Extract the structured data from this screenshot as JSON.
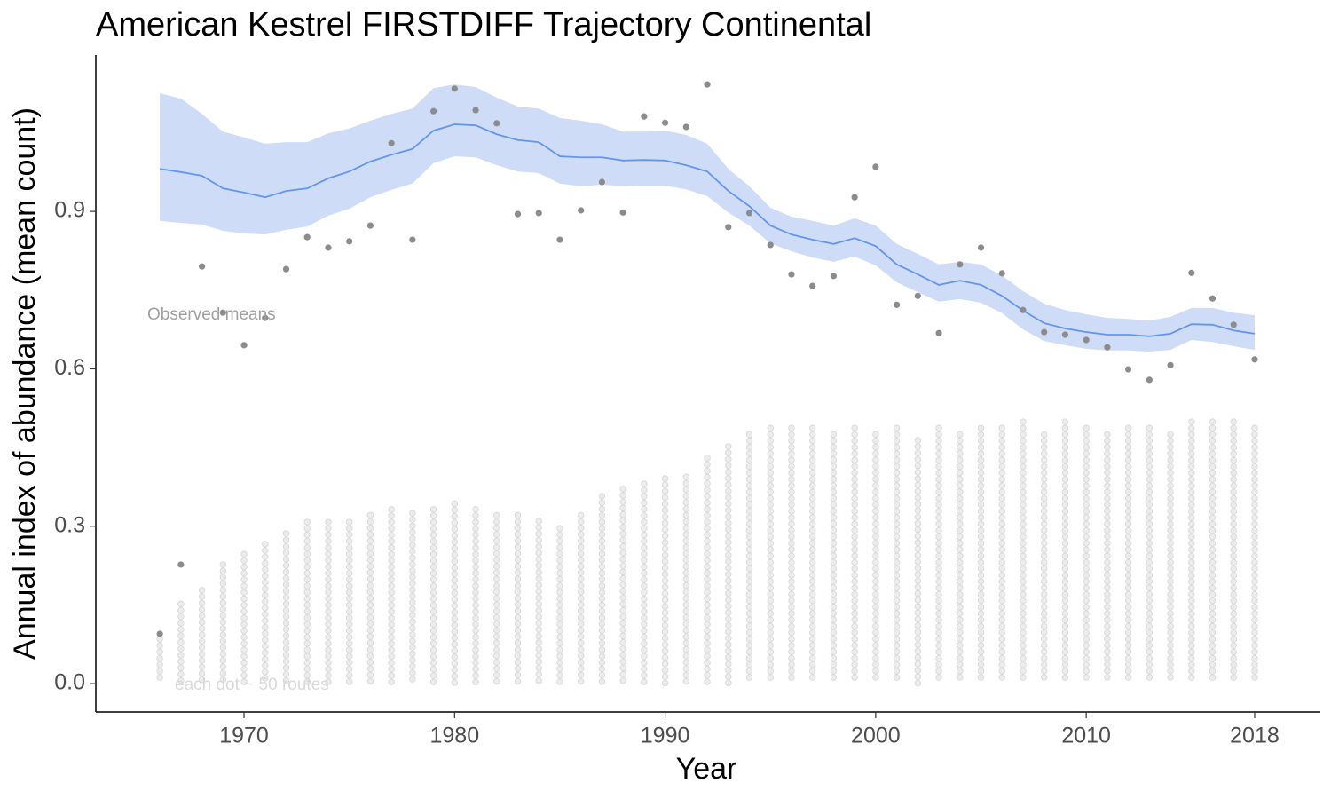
{
  "chart_data": {
    "type": "line",
    "title": "American Kestrel FIRSTDIFF Trajectory Continental",
    "xlabel": "Year",
    "ylabel": "Annual index of abundance (mean count)",
    "annotations": [
      "Observed means",
      "each dot ~ 50 routes"
    ],
    "x": [
      1966,
      1967,
      1968,
      1969,
      1970,
      1971,
      1972,
      1973,
      1974,
      1975,
      1976,
      1977,
      1978,
      1979,
      1980,
      1981,
      1982,
      1983,
      1984,
      1985,
      1986,
      1987,
      1988,
      1989,
      1990,
      1991,
      1992,
      1993,
      1994,
      1995,
      1996,
      1997,
      1998,
      1999,
      2000,
      2001,
      2002,
      2003,
      2004,
      2005,
      2006,
      2007,
      2008,
      2009,
      2010,
      2011,
      2012,
      2013,
      2014,
      2015,
      2016,
      2017,
      2018
    ],
    "observed_means": {
      "color": "#8c8c8c",
      "values": [
        0.095,
        0.227,
        0.795,
        0.707,
        0.645,
        0.697,
        0.79,
        0.851,
        0.831,
        0.843,
        0.873,
        1.03,
        0.846,
        1.091,
        1.134,
        1.093,
        1.068,
        0.895,
        0.897,
        0.846,
        0.902,
        0.956,
        0.898,
        1.081,
        1.069,
        1.061,
        1.142,
        0.87,
        0.897,
        0.836,
        0.78,
        0.758,
        0.777,
        0.927,
        0.985,
        0.722,
        0.739,
        0.668,
        0.799,
        0.831,
        0.782,
        0.712,
        0.67,
        0.665,
        0.655,
        0.641,
        0.599,
        0.579,
        0.607,
        0.783,
        0.734,
        0.684,
        0.618
      ]
    },
    "trajectory": {
      "color": "#6495ed",
      "values": [
        0.981,
        0.975,
        0.968,
        0.944,
        0.936,
        0.927,
        0.939,
        0.944,
        0.963,
        0.976,
        0.995,
        1.008,
        1.019,
        1.054,
        1.066,
        1.064,
        1.047,
        1.036,
        1.032,
        1.005,
        1.003,
        1.003,
        0.997,
        0.998,
        0.997,
        0.988,
        0.976,
        0.939,
        0.91,
        0.873,
        0.856,
        0.846,
        0.838,
        0.849,
        0.834,
        0.799,
        0.78,
        0.76,
        0.768,
        0.76,
        0.739,
        0.711,
        0.687,
        0.677,
        0.67,
        0.665,
        0.665,
        0.662,
        0.667,
        0.685,
        0.684,
        0.673,
        0.667
      ]
    },
    "ci_upper": [
      1.125,
      1.115,
      1.086,
      1.052,
      1.041,
      1.029,
      1.032,
      1.032,
      1.049,
      1.058,
      1.073,
      1.086,
      1.096,
      1.135,
      1.142,
      1.137,
      1.117,
      1.1,
      1.096,
      1.078,
      1.073,
      1.066,
      1.052,
      1.052,
      1.054,
      1.046,
      1.029,
      0.981,
      0.948,
      0.907,
      0.89,
      0.882,
      0.873,
      0.887,
      0.873,
      0.838,
      0.819,
      0.799,
      0.804,
      0.799,
      0.778,
      0.748,
      0.724,
      0.712,
      0.704,
      0.697,
      0.695,
      0.692,
      0.699,
      0.716,
      0.716,
      0.707,
      0.702
    ],
    "ci_lower": [
      0.882,
      0.878,
      0.875,
      0.863,
      0.858,
      0.856,
      0.865,
      0.871,
      0.892,
      0.905,
      0.927,
      0.941,
      0.953,
      0.992,
      1.005,
      1.003,
      0.988,
      0.976,
      0.973,
      0.953,
      0.948,
      0.951,
      0.948,
      0.949,
      0.949,
      0.942,
      0.929,
      0.898,
      0.873,
      0.839,
      0.824,
      0.812,
      0.804,
      0.814,
      0.797,
      0.765,
      0.746,
      0.728,
      0.733,
      0.726,
      0.706,
      0.675,
      0.653,
      0.645,
      0.638,
      0.635,
      0.635,
      0.633,
      0.636,
      0.655,
      0.651,
      0.643,
      0.636
    ],
    "ci_color": "#cfdcf8",
    "route_stacks": {
      "color": "#ececec",
      "edge": "#d6d6d6",
      "values": [
        0.085,
        0.152,
        0.178,
        0.227,
        0.247,
        0.266,
        0.286,
        0.308,
        0.308,
        0.308,
        0.321,
        0.332,
        0.325,
        0.332,
        0.343,
        0.332,
        0.321,
        0.321,
        0.31,
        0.296,
        0.321,
        0.357,
        0.371,
        0.381,
        0.391,
        0.394,
        0.43,
        0.452,
        0.475,
        0.487,
        0.487,
        0.487,
        0.475,
        0.487,
        0.475,
        0.487,
        0.464,
        0.487,
        0.475,
        0.487,
        0.487,
        0.499,
        0.475,
        0.499,
        0.487,
        0.475,
        0.487,
        0.487,
        0.475,
        0.499,
        0.499,
        0.499,
        0.487
      ]
    },
    "xlim": [
      1962.96,
      2021.12
    ],
    "ylim": [
      -0.054,
      1.198
    ],
    "xticks": [
      1970,
      1980,
      1990,
      2000,
      2010,
      2018
    ],
    "yticks": [
      {
        "value": 0,
        "label": "0.0"
      },
      0.3,
      0.6,
      0.9
    ],
    "grid": false
  }
}
